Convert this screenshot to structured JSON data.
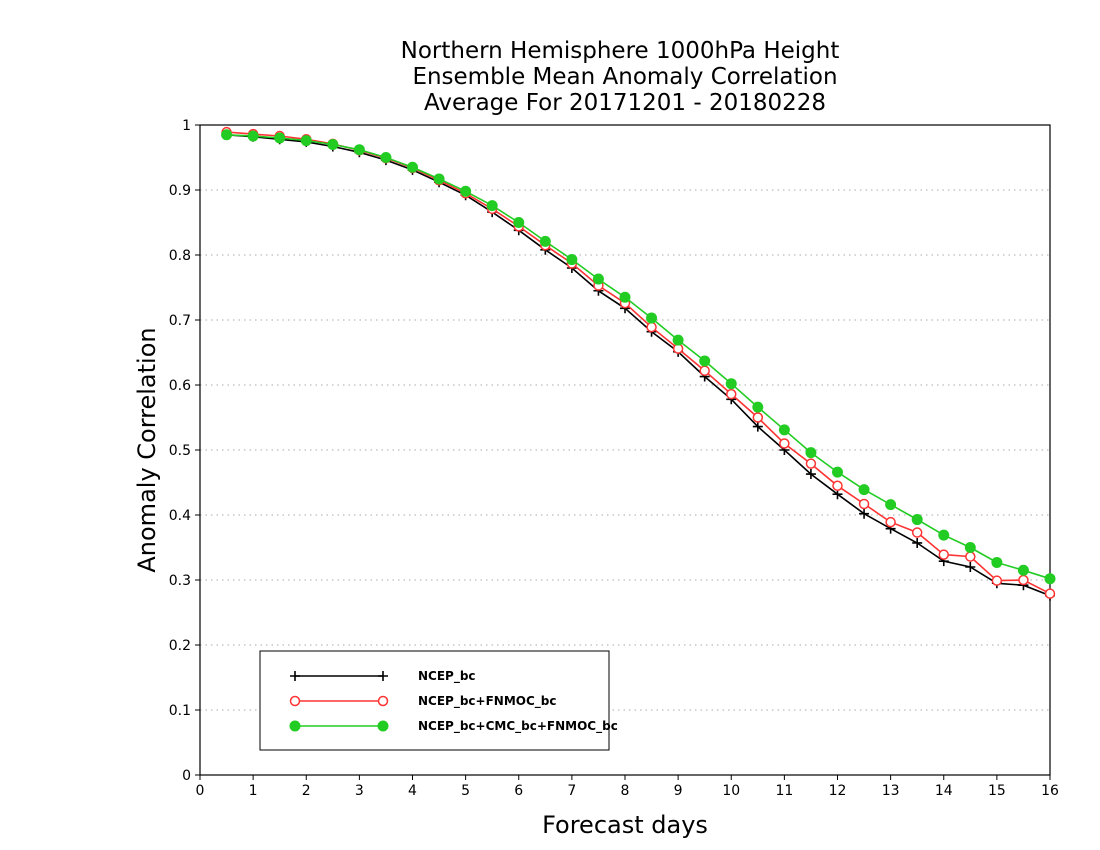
{
  "chart_data": {
    "type": "line",
    "title": [
      "Northern Hemisphere 1000hPa Height",
      "Ensemble Mean Anomaly Correlation",
      "Average For 20171201 - 20180228"
    ],
    "xlabel": "Forecast days",
    "ylabel": "Anomaly Correlation",
    "xlim": [
      0,
      16
    ],
    "ylim": [
      0,
      1
    ],
    "xticks": [
      "0",
      "1",
      "2",
      "3",
      "4",
      "5",
      "6",
      "7",
      "8",
      "9",
      "10",
      "11",
      "12",
      "13",
      "14",
      "15",
      "16"
    ],
    "yticks": [
      "0",
      "0.1",
      "0.2",
      "0.3",
      "0.4",
      "0.5",
      "0.6",
      "0.7",
      "0.8",
      "0.9",
      "1"
    ],
    "grid": true,
    "legend_position": "bottom-left",
    "x": [
      0.5,
      1,
      1.5,
      2,
      2.5,
      3,
      3.5,
      4,
      4.5,
      5,
      5.5,
      6,
      6.5,
      7,
      7.5,
      8,
      8.5,
      9,
      9.5,
      10,
      10.5,
      11,
      11.5,
      12,
      12.5,
      13,
      13.5,
      14,
      14.5,
      15,
      15.5,
      16
    ],
    "series": [
      {
        "name": "NCEP_bc",
        "color": "#000000",
        "marker": "plus",
        "values": [
          0.985,
          0.982,
          0.978,
          0.974,
          0.967,
          0.958,
          0.946,
          0.931,
          0.912,
          0.892,
          0.866,
          0.838,
          0.808,
          0.78,
          0.745,
          0.718,
          0.682,
          0.651,
          0.613,
          0.578,
          0.536,
          0.5,
          0.463,
          0.432,
          0.402,
          0.379,
          0.357,
          0.329,
          0.32,
          0.295,
          0.292,
          0.276
        ]
      },
      {
        "name": "NCEP_bc+FNMOC_bc",
        "color": "#ff3333",
        "marker": "open-circle",
        "values": [
          0.989,
          0.986,
          0.983,
          0.978,
          0.971,
          0.961,
          0.949,
          0.934,
          0.915,
          0.895,
          0.871,
          0.844,
          0.815,
          0.787,
          0.753,
          0.726,
          0.689,
          0.656,
          0.622,
          0.586,
          0.55,
          0.51,
          0.479,
          0.445,
          0.417,
          0.389,
          0.373,
          0.339,
          0.336,
          0.299,
          0.3,
          0.279
        ]
      },
      {
        "name": "NCEP_bc+CMC_bc+FNMOC_bc",
        "color": "#22cc22",
        "marker": "filled-circle",
        "values": [
          0.985,
          0.983,
          0.98,
          0.976,
          0.97,
          0.962,
          0.95,
          0.935,
          0.917,
          0.898,
          0.876,
          0.85,
          0.821,
          0.793,
          0.763,
          0.735,
          0.703,
          0.669,
          0.637,
          0.602,
          0.566,
          0.531,
          0.496,
          0.466,
          0.439,
          0.416,
          0.393,
          0.369,
          0.35,
          0.327,
          0.315,
          0.302
        ]
      }
    ]
  }
}
